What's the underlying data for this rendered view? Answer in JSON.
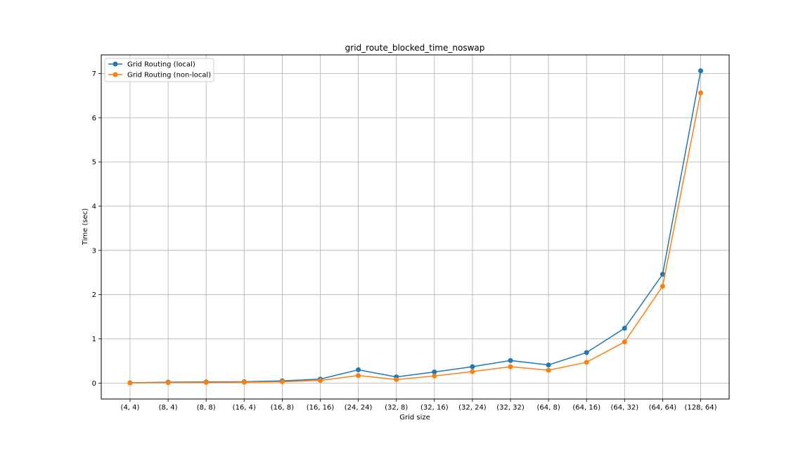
{
  "chart_data": {
    "type": "line",
    "title": "grid_route_blocked_time_noswap",
    "xlabel": "Grid size",
    "ylabel": "Time (sec)",
    "categories": [
      "(4, 4)",
      "(8, 4)",
      "(8, 8)",
      "(16, 4)",
      "(16, 8)",
      "(16, 16)",
      "(24, 24)",
      "(32, 8)",
      "(32, 16)",
      "(32, 24)",
      "(32, 32)",
      "(64, 8)",
      "(64, 16)",
      "(64, 32)",
      "(64, 64)",
      "(128, 64)"
    ],
    "yticks": [
      0,
      1,
      2,
      3,
      4,
      5,
      6,
      7
    ],
    "ylim": [
      -0.36,
      7.42
    ],
    "grid": true,
    "legend_position": "top-left",
    "series": [
      {
        "name": "Grid Routing (local)",
        "color": "#1f77b4",
        "marker": "circle",
        "values": [
          0.005,
          0.02,
          0.025,
          0.03,
          0.05,
          0.09,
          0.3,
          0.14,
          0.25,
          0.37,
          0.51,
          0.41,
          0.69,
          1.24,
          2.46,
          7.06
        ]
      },
      {
        "name": "Grid Routing (non-local)",
        "color": "#ff7f0e",
        "marker": "circle",
        "values": [
          0.003,
          0.01,
          0.015,
          0.02,
          0.03,
          0.06,
          0.17,
          0.08,
          0.16,
          0.26,
          0.37,
          0.29,
          0.47,
          0.93,
          2.19,
          6.56
        ]
      }
    ]
  }
}
